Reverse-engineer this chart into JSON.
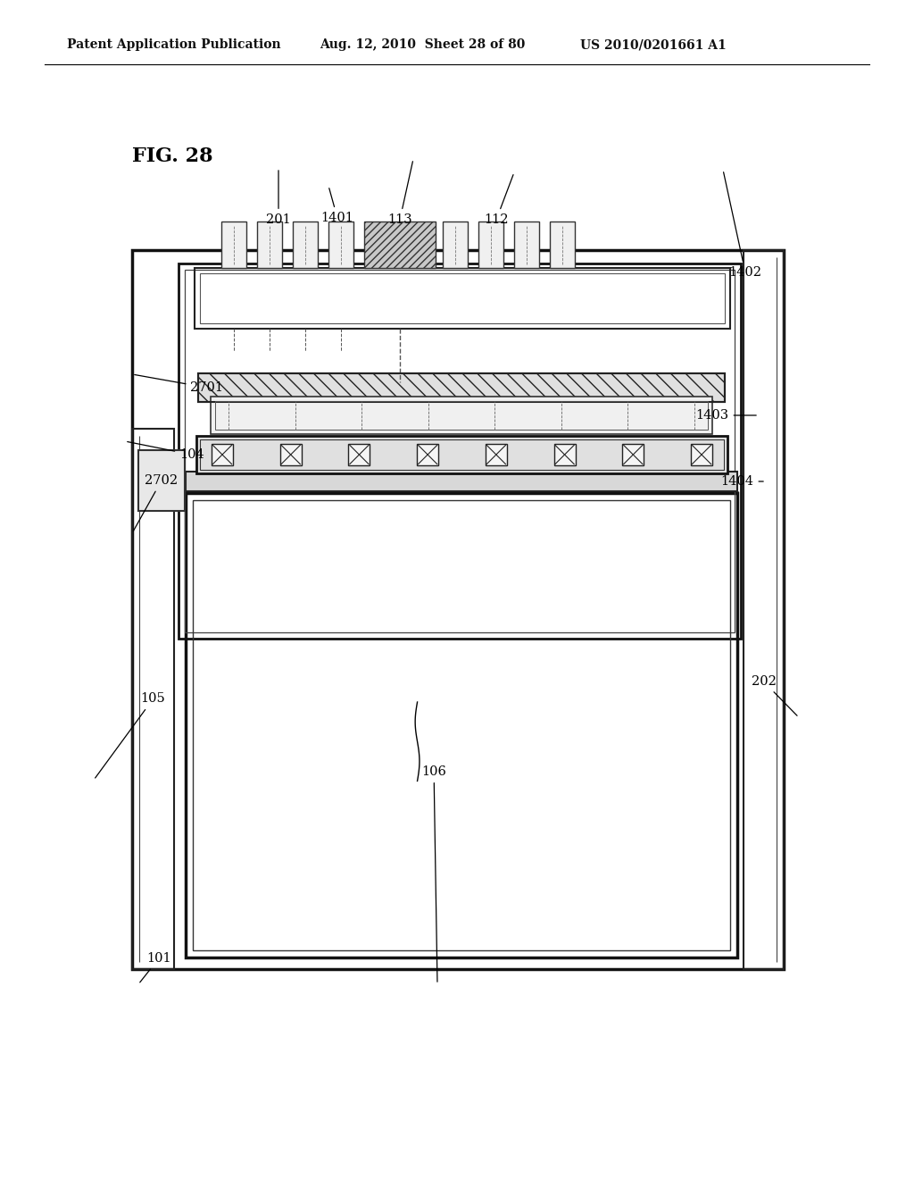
{
  "header_left": "Patent Application Publication",
  "header_mid": "Aug. 12, 2010  Sheet 28 of 80",
  "header_right": "US 2010/0201661 A1",
  "fig_title": "FIG. 28",
  "bg_color": "#ffffff"
}
